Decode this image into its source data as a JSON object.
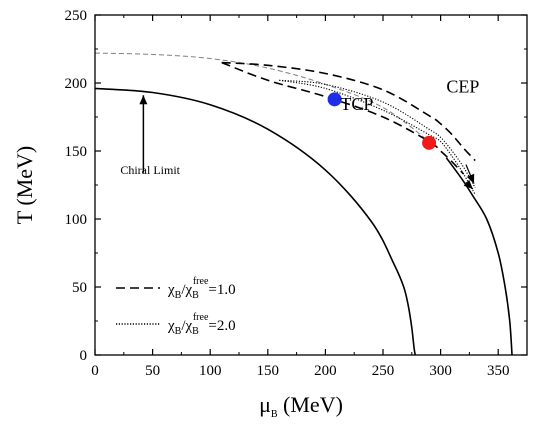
{
  "chart_data": {
    "type": "line",
    "xlabel": "μ",
    "xlabel_sub": "B",
    "xlabel_unit": "(MeV)",
    "ylabel": "T (MeV)",
    "xlim": [
      0,
      375
    ],
    "ylim": [
      0,
      250
    ],
    "xticks": [
      0,
      50,
      100,
      150,
      200,
      250,
      300,
      350
    ],
    "yticks": [
      0,
      50,
      100,
      150,
      200,
      250
    ],
    "grid": false,
    "series": [
      {
        "style": "solid",
        "x": [
          0,
          50,
          100,
          150,
          200,
          240,
          260,
          268,
          272,
          275,
          277,
          278
        ],
        "y": [
          196,
          193,
          184,
          166,
          136,
          98,
          66,
          50,
          36,
          20,
          5,
          0
        ]
      },
      {
        "style": "solid",
        "x": [
          305,
          318,
          328,
          340,
          350,
          356,
          360,
          362
        ],
        "y": [
          145,
          130,
          117,
          100,
          75,
          50,
          25,
          0
        ]
      },
      {
        "style": "thin-dashed",
        "x": [
          0,
          50,
          100,
          150,
          200,
          250,
          290
        ],
        "y": [
          222,
          221,
          218,
          211,
          199,
          182,
          157
        ]
      },
      {
        "name": "χB/χBfree=1.0",
        "style": "dashed",
        "x": [
          110,
          150,
          200,
          250,
          290,
          300,
          310,
          320,
          330
        ],
        "y": [
          215,
          213,
          207,
          195,
          176,
          170,
          162,
          152,
          143
        ]
      },
      {
        "name": "χB/χBfree=1.0",
        "style": "dashed",
        "x": [
          110,
          150,
          200,
          250,
          290,
          300,
          310,
          320
        ],
        "y": [
          215,
          202,
          190,
          175,
          157,
          150,
          142,
          133
        ]
      },
      {
        "name": "χB/χBfree=2.0",
        "style": "dotted",
        "x": [
          160,
          200,
          250,
          290,
          300,
          310,
          320,
          330
        ],
        "y": [
          202,
          199,
          186,
          166,
          160,
          150,
          138,
          123
        ]
      },
      {
        "name": "χB/χBfree=2.0",
        "style": "dotted",
        "x": [
          160,
          200,
          250,
          290,
          300,
          310,
          320,
          330
        ],
        "y": [
          202,
          196,
          180,
          162,
          157,
          146,
          133,
          118
        ]
      }
    ],
    "points": [
      {
        "label": "TCP",
        "x": 208,
        "y": 188,
        "color": "#1f2de8"
      },
      {
        "label": "CEP",
        "x": 290,
        "y": 156,
        "color": "#f01a1a"
      }
    ],
    "annotations": [
      {
        "text": "TCP",
        "x": 213,
        "y": 180
      },
      {
        "text": "CEP",
        "x": 305,
        "y": 193
      },
      {
        "text": "Chiral Limit",
        "x": 22,
        "y": 133
      }
    ],
    "arrows": [
      {
        "from": [
          42,
          134
        ],
        "to": [
          42,
          191
        ]
      },
      {
        "from": [
          322,
          140
        ],
        "to": [
          329,
          126
        ]
      },
      {
        "from": [
          322,
          127
        ],
        "to": [
          328,
          122
        ]
      }
    ],
    "legend": {
      "position": "bottom-left",
      "entries": [
        {
          "style": "dashed",
          "ratio": "χ",
          "sub": "B",
          "sep": "/χ",
          "sub2": "B",
          "sup": "free",
          "value": "=1.0"
        },
        {
          "style": "dotted",
          "ratio": "χ",
          "sub": "B",
          "sep": "/χ",
          "sub2": "B",
          "sup": "free",
          "value": "=2.0"
        }
      ]
    }
  }
}
